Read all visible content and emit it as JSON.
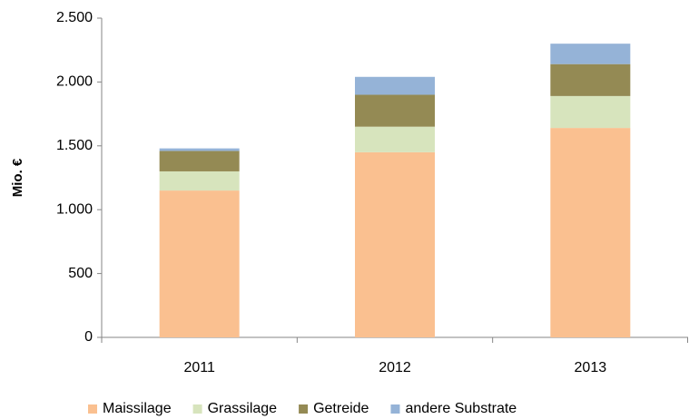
{
  "chart_data": {
    "type": "stacked_bar",
    "y_label": "Mio. €",
    "categories": [
      "2011",
      "2012",
      "2013"
    ],
    "series": [
      {
        "name": "Maissilage",
        "color": "#fac090",
        "values": [
          1150,
          1450,
          1640
        ]
      },
      {
        "name": "Grassilage",
        "color": "#d7e4bd",
        "values": [
          150,
          200,
          250
        ]
      },
      {
        "name": "Getreide",
        "color": "#948a54",
        "values": [
          160,
          250,
          250
        ]
      },
      {
        "name": "andere Substrate",
        "color": "#95b3d7",
        "values": [
          20,
          140,
          160
        ]
      }
    ],
    "ylim": [
      0,
      2500
    ],
    "yticks": [
      0,
      500,
      {
        "value": 1000,
        "label": "1.000"
      },
      {
        "value": 1500,
        "label": "1.500"
      },
      {
        "value": 2000,
        "label": "2.000"
      },
      {
        "value": 2500,
        "label": "2.500"
      }
    ],
    "grid": false
  }
}
